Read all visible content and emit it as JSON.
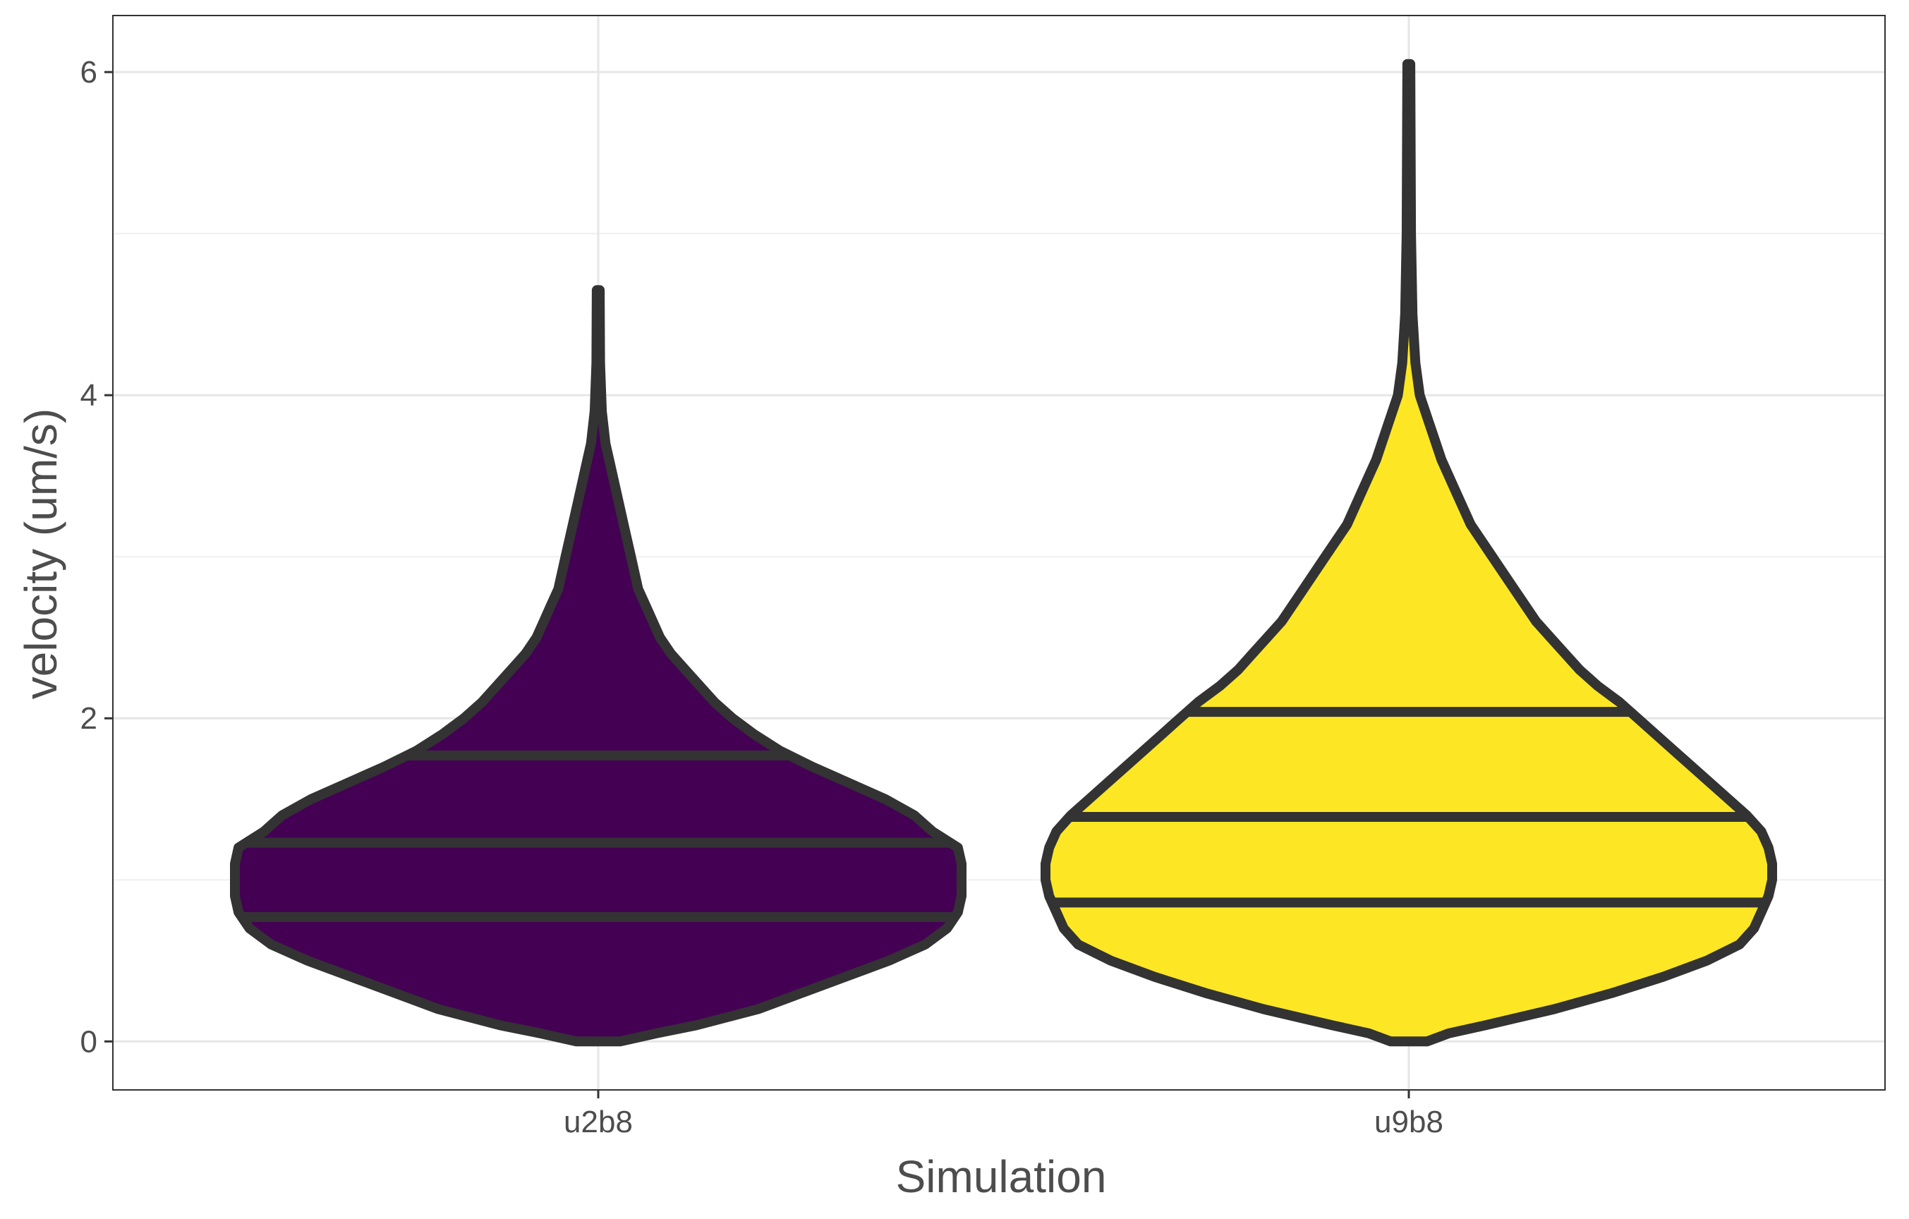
{
  "chart_data": {
    "type": "violin",
    "title": "",
    "xlabel": "Simulation",
    "ylabel": "velocity (um/s)",
    "ylim": [
      -0.3,
      6.35
    ],
    "y_ticks": [
      0,
      2,
      4,
      6
    ],
    "y_tick_labels": [
      "0",
      "2",
      "4",
      "6"
    ],
    "grid": true,
    "legend": "none",
    "categories": [
      "u2b8",
      "u9b8"
    ],
    "series": [
      {
        "category": "u2b8",
        "color": "#440154",
        "min": 0,
        "max": 4.65,
        "quantiles": {
          "q25": 0.77,
          "median": 1.23,
          "q75": 1.77
        },
        "density_profile": [
          [
            0.0,
            0.06
          ],
          [
            0.05,
            0.16
          ],
          [
            0.1,
            0.27
          ],
          [
            0.2,
            0.44
          ],
          [
            0.3,
            0.56
          ],
          [
            0.4,
            0.68
          ],
          [
            0.5,
            0.8
          ],
          [
            0.6,
            0.9
          ],
          [
            0.7,
            0.96
          ],
          [
            0.8,
            0.99
          ],
          [
            0.9,
            1.0
          ],
          [
            1.0,
            1.0
          ],
          [
            1.1,
            1.0
          ],
          [
            1.2,
            0.99
          ],
          [
            1.3,
            0.92
          ],
          [
            1.4,
            0.87
          ],
          [
            1.5,
            0.79
          ],
          [
            1.6,
            0.69
          ],
          [
            1.7,
            0.59
          ],
          [
            1.8,
            0.5
          ],
          [
            1.9,
            0.43
          ],
          [
            2.0,
            0.37
          ],
          [
            2.1,
            0.32
          ],
          [
            2.2,
            0.28
          ],
          [
            2.3,
            0.24
          ],
          [
            2.4,
            0.2
          ],
          [
            2.5,
            0.17
          ],
          [
            2.6,
            0.15
          ],
          [
            2.7,
            0.13
          ],
          [
            2.8,
            0.11
          ],
          [
            2.9,
            0.1
          ],
          [
            3.0,
            0.09
          ],
          [
            3.2,
            0.07
          ],
          [
            3.4,
            0.05
          ],
          [
            3.6,
            0.03
          ],
          [
            3.7,
            0.02
          ],
          [
            3.9,
            0.01
          ],
          [
            4.2,
            0.005
          ],
          [
            4.65,
            0.004
          ]
        ]
      },
      {
        "category": "u9b8",
        "color": "#fde725",
        "min": 0,
        "max": 6.05,
        "quantiles": {
          "q25": 0.86,
          "median": 1.39,
          "q75": 2.04
        },
        "density_profile": [
          [
            0.0,
            0.05
          ],
          [
            0.05,
            0.11
          ],
          [
            0.1,
            0.21
          ],
          [
            0.2,
            0.4
          ],
          [
            0.3,
            0.56
          ],
          [
            0.4,
            0.7
          ],
          [
            0.5,
            0.82
          ],
          [
            0.6,
            0.91
          ],
          [
            0.7,
            0.95
          ],
          [
            0.8,
            0.97
          ],
          [
            0.9,
            0.99
          ],
          [
            1.0,
            1.0
          ],
          [
            1.1,
            1.0
          ],
          [
            1.2,
            0.99
          ],
          [
            1.3,
            0.97
          ],
          [
            1.4,
            0.93
          ],
          [
            1.5,
            0.88
          ],
          [
            1.6,
            0.83
          ],
          [
            1.7,
            0.78
          ],
          [
            1.8,
            0.73
          ],
          [
            1.9,
            0.68
          ],
          [
            2.0,
            0.63
          ],
          [
            2.1,
            0.58
          ],
          [
            2.2,
            0.52
          ],
          [
            2.3,
            0.47
          ],
          [
            2.4,
            0.43
          ],
          [
            2.5,
            0.39
          ],
          [
            2.6,
            0.35
          ],
          [
            2.8,
            0.29
          ],
          [
            3.0,
            0.23
          ],
          [
            3.2,
            0.17
          ],
          [
            3.4,
            0.13
          ],
          [
            3.6,
            0.09
          ],
          [
            3.8,
            0.06
          ],
          [
            4.0,
            0.03
          ],
          [
            4.2,
            0.018
          ],
          [
            4.5,
            0.01
          ],
          [
            5.0,
            0.006
          ],
          [
            6.05,
            0.004
          ]
        ]
      }
    ]
  }
}
